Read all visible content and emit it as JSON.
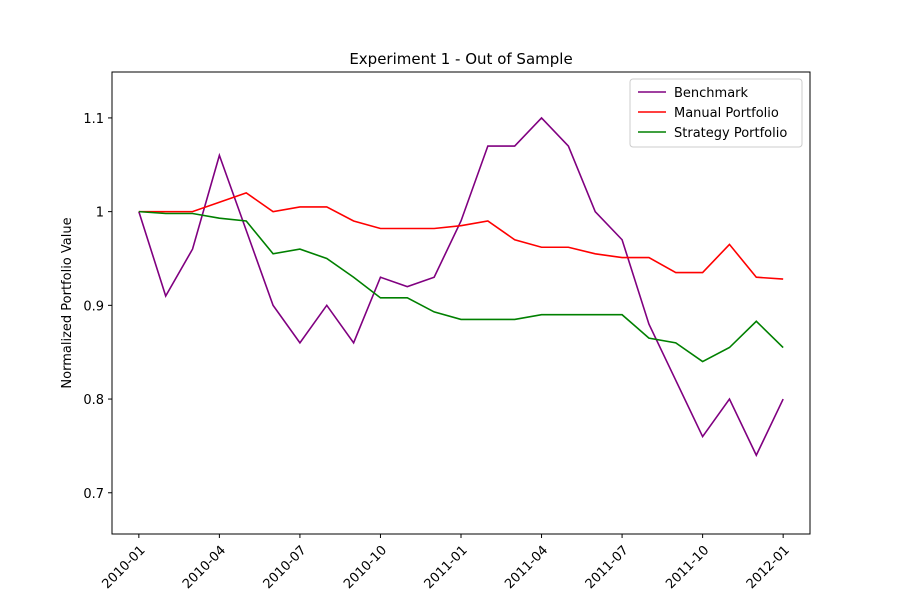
{
  "chart_data": {
    "type": "line",
    "title": "Experiment 1 - Out of Sample",
    "y_label": "Normalized Portfolio Value",
    "x": [
      "2010-01",
      "2010-02",
      "2010-03",
      "2010-04",
      "2010-05",
      "2010-06",
      "2010-07",
      "2010-08",
      "2010-09",
      "2010-10",
      "2010-11",
      "2010-12",
      "2011-01",
      "2011-02",
      "2011-03",
      "2011-04",
      "2011-05",
      "2011-06",
      "2011-07",
      "2011-08",
      "2011-09",
      "2011-10",
      "2011-11",
      "2011-12",
      "2012-01"
    ],
    "series": [
      {
        "name": "Benchmark",
        "color": "#800080",
        "values": [
          1.0,
          0.91,
          0.96,
          1.06,
          0.98,
          0.9,
          0.86,
          0.9,
          0.86,
          0.93,
          0.92,
          0.93,
          0.99,
          1.07,
          1.07,
          1.1,
          1.07,
          1.0,
          0.97,
          0.88,
          0.82,
          0.76,
          0.8,
          0.74,
          0.8
        ]
      },
      {
        "name": "Manual Portfolio",
        "color": "#ff0000",
        "values": [
          1.0,
          1.0,
          1.0,
          1.01,
          1.02,
          1.0,
          1.005,
          1.005,
          0.99,
          0.982,
          0.982,
          0.982,
          0.985,
          0.99,
          0.97,
          0.962,
          0.962,
          0.955,
          0.951,
          0.951,
          0.935,
          0.935,
          0.965,
          0.93,
          0.928
        ]
      },
      {
        "name": "Strategy Portfolio",
        "color": "#008000",
        "values": [
          1.0,
          0.998,
          0.998,
          0.993,
          0.99,
          0.955,
          0.96,
          0.95,
          0.93,
          0.908,
          0.908,
          0.893,
          0.885,
          0.885,
          0.885,
          0.89,
          0.89,
          0.89,
          0.89,
          0.865,
          0.86,
          0.84,
          0.855,
          0.883,
          0.855
        ]
      }
    ],
    "xlim": [
      "2009-12",
      "2012-02"
    ],
    "xticks": [
      "2010-01",
      "2010-04",
      "2010-07",
      "2010-10",
      "2011-01",
      "2011-04",
      "2011-07",
      "2011-10",
      "2012-01"
    ],
    "ylim": [
      0.656,
      1.149
    ],
    "yticks": [
      0.7,
      0.8,
      0.9,
      1.0,
      1.1
    ],
    "legend": "upper right"
  }
}
